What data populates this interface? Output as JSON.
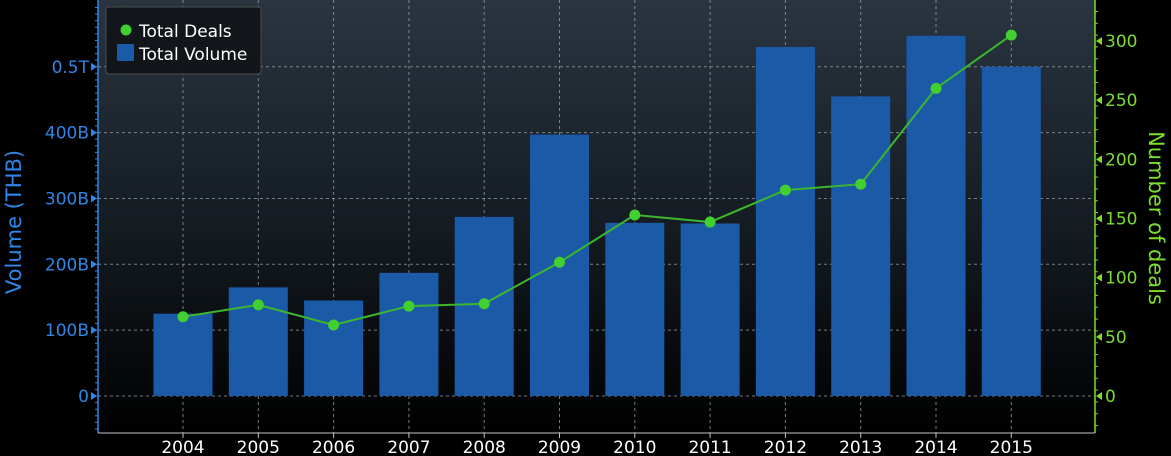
{
  "chart_data": {
    "type": "bar",
    "categories": [
      "2004",
      "2005",
      "2006",
      "2007",
      "2008",
      "2009",
      "2010",
      "2011",
      "2012",
      "2013",
      "2014",
      "2015"
    ],
    "series": [
      {
        "name": "Total Volume",
        "type": "bar",
        "axis": "left",
        "values": [
          125,
          165,
          145,
          187,
          272,
          397,
          263,
          262,
          530,
          455,
          547,
          500
        ]
      },
      {
        "name": "Total Deals",
        "type": "line",
        "axis": "right",
        "values": [
          67,
          77,
          60,
          76,
          78,
          113,
          153,
          147,
          174,
          179,
          260,
          305
        ]
      }
    ],
    "left_axis": {
      "label": "Volume (THB)",
      "unit": "billions",
      "ticks": [
        {
          "value": 0,
          "label": "0"
        },
        {
          "value": 100,
          "label": "100B"
        },
        {
          "value": 200,
          "label": "200B"
        },
        {
          "value": 300,
          "label": "300B"
        },
        {
          "value": 400,
          "label": "400B"
        },
        {
          "value": 500,
          "label": "0.5T"
        }
      ],
      "ylim": [
        -55,
        598
      ]
    },
    "right_axis": {
      "label": "Number of deals",
      "ticks": [
        0,
        50,
        100,
        150,
        200,
        250,
        300
      ],
      "ylim": [
        -27.5,
        333
      ]
    },
    "legend": {
      "placement": "top-left",
      "entries": [
        "Total Deals",
        "Total Volume"
      ]
    },
    "grid": true,
    "colors": {
      "bar": "#1b5aa7",
      "line": "#3cb62e",
      "marker": "#41d02f",
      "left_axis": "#2f86e6",
      "right_axis": "#7cde2c",
      "grid": "#9aa2aa",
      "text": "#ffffff"
    }
  }
}
